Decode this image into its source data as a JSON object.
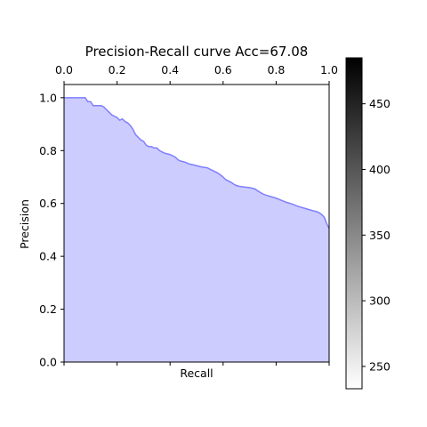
{
  "chart_data": {
    "type": "area",
    "title": "Precision-Recall curve Acc=67.08",
    "xlabel": "Recall",
    "ylabel": "Precision",
    "xlim": [
      0.0,
      1.0
    ],
    "ylim": [
      0.0,
      1.05
    ],
    "x_ticks": [
      "0.0",
      "0.2",
      "0.4",
      "0.6",
      "0.8",
      "1.0"
    ],
    "y_ticks": [
      "0.0",
      "0.2",
      "0.4",
      "0.6",
      "0.8",
      "1.0"
    ],
    "x_ticks_position": "top",
    "grid": false,
    "legend": "none",
    "series": [
      {
        "x": [
          0.0,
          0.02,
          0.05,
          0.08,
          0.09,
          0.1,
          0.11,
          0.12,
          0.14,
          0.15,
          0.16,
          0.17,
          0.18,
          0.19,
          0.2,
          0.21,
          0.22,
          0.23,
          0.24,
          0.25,
          0.26,
          0.27,
          0.28,
          0.29,
          0.3,
          0.31,
          0.32,
          0.33,
          0.34,
          0.35,
          0.36,
          0.37,
          0.38,
          0.4,
          0.42,
          0.43,
          0.44,
          0.45,
          0.46,
          0.47,
          0.48,
          0.5,
          0.52,
          0.54,
          0.56,
          0.58,
          0.59,
          0.6,
          0.61,
          0.62,
          0.63,
          0.64,
          0.65,
          0.66,
          0.68,
          0.7,
          0.72,
          0.73,
          0.74,
          0.75,
          0.76,
          0.78,
          0.8,
          0.82,
          0.84,
          0.86,
          0.88,
          0.9,
          0.92,
          0.94,
          0.95,
          0.96,
          0.97,
          0.98,
          0.985,
          0.99,
          0.995,
          1.0
        ],
        "y": [
          1.0,
          1.0,
          1.0,
          1.0,
          0.985,
          0.985,
          0.97,
          0.97,
          0.97,
          0.965,
          0.955,
          0.945,
          0.935,
          0.93,
          0.925,
          0.915,
          0.92,
          0.91,
          0.905,
          0.895,
          0.88,
          0.86,
          0.85,
          0.84,
          0.835,
          0.82,
          0.815,
          0.815,
          0.81,
          0.81,
          0.8,
          0.795,
          0.79,
          0.785,
          0.775,
          0.765,
          0.76,
          0.758,
          0.755,
          0.75,
          0.748,
          0.743,
          0.738,
          0.735,
          0.725,
          0.715,
          0.708,
          0.7,
          0.69,
          0.685,
          0.68,
          0.673,
          0.668,
          0.665,
          0.662,
          0.66,
          0.655,
          0.648,
          0.642,
          0.636,
          0.632,
          0.626,
          0.62,
          0.612,
          0.604,
          0.598,
          0.59,
          0.584,
          0.578,
          0.572,
          0.57,
          0.566,
          0.56,
          0.55,
          0.54,
          0.525,
          0.515,
          0.505
        ],
        "color": "#7f7fff",
        "fill": "#ccccff"
      }
    ],
    "colorbar": {
      "colormap": "gray_r",
      "range": [
        233,
        485
      ],
      "ticks": [
        "250",
        "300",
        "350",
        "400",
        "450"
      ],
      "tick_values": [
        250,
        300,
        350,
        400,
        450
      ],
      "color_low": "#ffffff",
      "color_high": "#000000"
    }
  }
}
